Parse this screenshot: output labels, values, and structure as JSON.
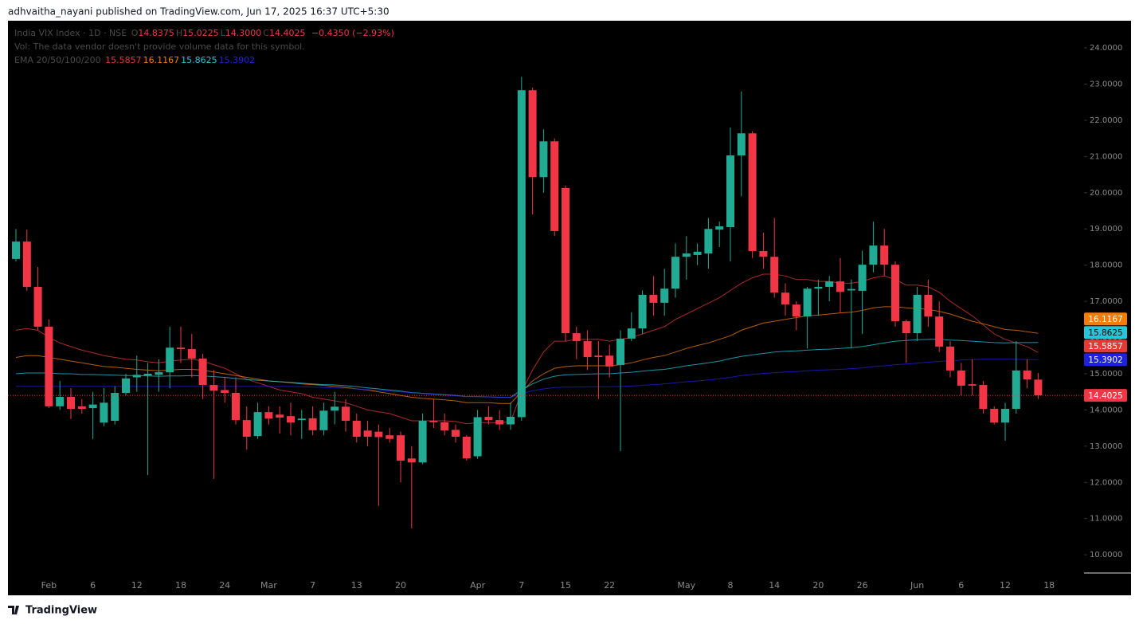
{
  "published": "adhvaitha_nayani published on TradingView.com, Jun 17, 2025 16:37 UTC+5:30",
  "brand": "TradingView",
  "chart_data": {
    "type": "candlestick",
    "title": "India VIX Index · 1D · NSE",
    "header_ohlc": [
      {
        "key": "O",
        "text": "14.8375"
      },
      {
        "key": "H",
        "text": "15.0225"
      },
      {
        "key": "L",
        "text": "14.3000"
      },
      {
        "key": "C",
        "text": "14.4025"
      }
    ],
    "change": "−0.4350 (−2.93%)",
    "volume_note": "Vol: The data vendor doesn't provide volume data for this symbol.",
    "indicator": "EMA 20/50/100/200",
    "up_color": "#22ab94",
    "down_color": "#f23645",
    "categories": [
      null,
      null,
      null,
      "Feb",
      null,
      null,
      null,
      "6",
      null,
      null,
      null,
      "12",
      null,
      null,
      null,
      "18",
      null,
      null,
      null,
      "24",
      null,
      null,
      null,
      "Mar",
      null,
      null,
      null,
      "7",
      null,
      null,
      null,
      "13",
      null,
      null,
      null,
      "20",
      null,
      null,
      null,
      null,
      null,
      null,
      "Apr",
      null,
      null,
      null,
      "7",
      null,
      null,
      null,
      "15",
      null,
      null,
      null,
      "22",
      null,
      null,
      null,
      null,
      null,
      null,
      "May",
      null,
      null,
      null,
      "8",
      null,
      null,
      null,
      "14",
      null,
      null,
      null,
      "20",
      null,
      null,
      null,
      "26",
      null,
      null,
      null,
      null,
      "Jun",
      null,
      null,
      null,
      "6",
      null,
      null,
      null,
      "12",
      null,
      null,
      null,
      "18"
    ],
    "open": [
      18.17,
      18.65,
      17.4,
      16.3,
      14.1,
      14.36,
      14.1,
      14.05,
      13.65,
      13.7,
      14.47,
      14.9,
      14.95,
      14.97,
      15.04,
      15.72,
      15.68,
      15.42,
      14.69,
      14.55,
      14.47,
      13.72,
      13.28,
      13.94,
      13.87,
      13.83,
      13.72,
      13.77,
      13.44,
      13.98,
      14.09,
      13.7,
      13.43,
      13.4,
      13.3,
      13.3,
      12.66,
      12.55,
      13.7,
      13.66,
      13.45,
      13.26,
      12.72,
      13.81,
      13.72,
      13.6,
      13.8,
      22.83,
      20.43,
      21.42,
      20.13,
      16.12,
      15.9,
      15.5,
      15.5,
      15.24,
      15.97,
      16.25,
      17.18,
      16.96,
      17.35,
      18.23,
      18.28,
      18.32,
      18.98,
      19.05,
      21.03,
      21.64,
      18.39,
      18.23,
      17.24,
      16.91,
      16.58,
      17.35,
      17.4,
      17.55,
      17.3,
      17.29,
      18.01,
      18.54,
      18.01,
      16.45,
      16.12,
      17.18,
      16.58,
      15.75,
      15.09,
      14.71,
      14.69,
      14.03,
      13.65,
      14.03,
      15.09,
      14.8375,
      null
    ],
    "high": [
      19.0,
      18.98,
      17.95,
      16.5,
      14.8,
      14.6,
      14.3,
      14.5,
      14.6,
      14.65,
      15.0,
      15.5,
      15.3,
      15.4,
      16.3,
      16.3,
      16.1,
      15.55,
      15.1,
      14.9,
      14.9,
      14.1,
      14.2,
      14.1,
      14.1,
      14.2,
      14.0,
      14.1,
      14.2,
      14.5,
      14.3,
      13.9,
      13.7,
      13.6,
      13.5,
      13.4,
      13.0,
      13.9,
      14.3,
      13.9,
      13.6,
      13.3,
      14.0,
      14.1,
      14.0,
      14.2,
      23.2,
      22.9,
      21.75,
      21.5,
      20.2,
      16.3,
      16.2,
      15.9,
      15.8,
      16.2,
      16.7,
      17.3,
      17.7,
      17.9,
      18.6,
      18.8,
      18.6,
      19.3,
      19.2,
      21.8,
      22.8,
      21.7,
      18.9,
      19.3,
      17.5,
      17.0,
      17.4,
      17.6,
      17.7,
      18.2,
      17.6,
      18.4,
      19.2,
      19.0,
      18.1,
      16.5,
      17.4,
      17.6,
      17.0,
      15.9,
      15.3,
      15.4,
      14.8,
      14.1,
      14.2,
      15.9,
      15.4,
      15.0225,
      null
    ],
    "low": [
      18.1,
      17.29,
      16.2,
      14.05,
      14.0,
      13.75,
      13.9,
      13.2,
      13.55,
      13.6,
      14.4,
      14.5,
      12.2,
      14.5,
      14.6,
      15.3,
      14.9,
      14.3,
      12.1,
      14.2,
      13.6,
      12.9,
      13.2,
      13.6,
      13.35,
      13.3,
      13.2,
      13.3,
      13.3,
      13.6,
      13.4,
      13.1,
      13.0,
      11.35,
      13.1,
      12.0,
      10.73,
      12.5,
      13.5,
      13.3,
      13.1,
      12.6,
      12.65,
      13.6,
      13.45,
      13.45,
      13.7,
      19.4,
      20.0,
      18.8,
      15.9,
      15.4,
      15.1,
      14.3,
      14.9,
      12.86,
      15.9,
      16.1,
      16.6,
      16.6,
      17.1,
      17.6,
      18.0,
      17.9,
      18.5,
      18.1,
      19.9,
      18.2,
      17.9,
      17.1,
      16.6,
      16.2,
      15.7,
      16.6,
      17.0,
      16.7,
      15.7,
      16.1,
      17.8,
      17.7,
      16.3,
      15.3,
      15.9,
      16.3,
      15.6,
      14.9,
      14.4,
      14.4,
      13.9,
      13.6,
      13.15,
      13.9,
      14.6,
      14.3,
      null
    ],
    "close": [
      18.65,
      17.4,
      16.3,
      14.1,
      14.36,
      14.03,
      14.03,
      14.15,
      14.2,
      14.47,
      14.87,
      14.97,
      15.0,
      15.04,
      15.72,
      15.68,
      15.42,
      14.69,
      14.53,
      14.47,
      13.72,
      13.26,
      13.94,
      13.76,
      13.79,
      13.65,
      13.76,
      13.44,
      13.98,
      14.09,
      13.7,
      13.26,
      13.26,
      13.25,
      13.2,
      12.6,
      12.55,
      13.7,
      13.66,
      13.43,
      13.26,
      12.66,
      13.8,
      13.72,
      13.6,
      13.81,
      22.83,
      20.43,
      21.42,
      18.94,
      16.12,
      15.9,
      15.46,
      15.46,
      15.2,
      15.97,
      16.25,
      17.18,
      16.96,
      17.35,
      18.23,
      18.32,
      18.37,
      19.0,
      19.07,
      21.03,
      21.64,
      18.39,
      18.23,
      17.24,
      16.91,
      16.58,
      17.35,
      17.4,
      17.55,
      17.26,
      17.34,
      18.01,
      18.54,
      18.01,
      16.45,
      16.12,
      17.18,
      16.58,
      15.75,
      15.09,
      14.67,
      14.67,
      14.03,
      13.65,
      14.03,
      15.09,
      14.84,
      14.4025,
      null
    ],
    "ema": [
      {
        "name": "EMA 20",
        "color": "#e53935",
        "values": [
          16.2,
          16.25,
          16.2,
          16.0,
          15.85,
          15.75,
          15.65,
          15.58,
          15.5,
          15.45,
          15.4,
          15.38,
          15.33,
          15.3,
          15.35,
          15.38,
          15.4,
          15.35,
          15.25,
          15.15,
          15.0,
          14.85,
          14.75,
          14.65,
          14.55,
          14.5,
          14.45,
          14.35,
          14.3,
          14.25,
          14.2,
          14.1,
          14.0,
          13.95,
          13.9,
          13.8,
          13.7,
          13.7,
          13.7,
          13.7,
          13.68,
          13.62,
          13.65,
          13.65,
          13.65,
          13.67,
          14.5,
          15.1,
          15.6,
          15.9,
          15.9,
          15.95,
          15.95,
          15.95,
          15.9,
          15.95,
          16.0,
          16.1,
          16.2,
          16.3,
          16.5,
          16.65,
          16.8,
          16.95,
          17.1,
          17.3,
          17.5,
          17.65,
          17.75,
          17.75,
          17.7,
          17.6,
          17.6,
          17.55,
          17.55,
          17.5,
          17.5,
          17.55,
          17.65,
          17.7,
          17.6,
          17.45,
          17.45,
          17.4,
          17.25,
          17.0,
          16.8,
          16.6,
          16.35,
          16.1,
          15.95,
          15.85,
          15.75,
          15.5857,
          null
        ]
      },
      {
        "name": "EMA 50",
        "color": "#f57c00",
        "values": [
          15.45,
          15.5,
          15.5,
          15.45,
          15.4,
          15.35,
          15.3,
          15.25,
          15.2,
          15.18,
          15.15,
          15.12,
          15.1,
          15.08,
          15.1,
          15.12,
          15.12,
          15.1,
          15.05,
          15.0,
          14.95,
          14.9,
          14.85,
          14.8,
          14.78,
          14.75,
          14.72,
          14.7,
          14.68,
          14.65,
          14.62,
          14.58,
          14.55,
          14.5,
          14.45,
          14.4,
          14.35,
          14.32,
          14.3,
          14.28,
          14.25,
          14.2,
          14.2,
          14.2,
          14.18,
          14.18,
          14.5,
          14.8,
          15.0,
          15.15,
          15.2,
          15.22,
          15.22,
          15.22,
          15.22,
          15.25,
          15.3,
          15.38,
          15.45,
          15.5,
          15.6,
          15.7,
          15.78,
          15.85,
          15.95,
          16.05,
          16.2,
          16.3,
          16.4,
          16.45,
          16.5,
          16.55,
          16.6,
          16.62,
          16.65,
          16.68,
          16.7,
          16.75,
          16.82,
          16.85,
          16.85,
          16.82,
          16.8,
          16.78,
          16.72,
          16.65,
          16.55,
          16.45,
          16.38,
          16.3,
          16.22,
          16.2,
          16.16,
          16.1167,
          null
        ]
      },
      {
        "name": "EMA 100",
        "color": "#26c6da",
        "values": [
          15.0,
          15.02,
          15.02,
          15.02,
          15.0,
          15.0,
          14.98,
          14.98,
          14.97,
          14.96,
          14.95,
          14.95,
          14.94,
          14.93,
          14.94,
          14.94,
          14.95,
          14.94,
          14.92,
          14.9,
          14.87,
          14.84,
          14.82,
          14.8,
          14.78,
          14.76,
          14.74,
          14.72,
          14.7,
          14.69,
          14.67,
          14.64,
          14.61,
          14.58,
          14.55,
          14.52,
          14.48,
          14.46,
          14.44,
          14.42,
          14.4,
          14.37,
          14.37,
          14.36,
          14.35,
          14.35,
          14.55,
          14.72,
          14.85,
          14.93,
          14.97,
          14.98,
          14.99,
          15.0,
          15.0,
          15.02,
          15.04,
          15.07,
          15.1,
          15.12,
          15.17,
          15.22,
          15.26,
          15.3,
          15.35,
          15.42,
          15.48,
          15.52,
          15.56,
          15.6,
          15.62,
          15.63,
          15.65,
          15.67,
          15.68,
          15.7,
          15.72,
          15.75,
          15.8,
          15.85,
          15.9,
          15.92,
          15.94,
          15.95,
          15.95,
          15.93,
          15.92,
          15.9,
          15.88,
          15.86,
          15.85,
          15.86,
          15.86,
          15.8625,
          null
        ]
      },
      {
        "name": "EMA 200",
        "color": "#1e22e0",
        "values": [
          14.65,
          14.65,
          14.65,
          14.65,
          14.65,
          14.65,
          14.65,
          14.65,
          14.65,
          14.65,
          14.65,
          14.65,
          14.65,
          14.65,
          14.65,
          14.65,
          14.65,
          14.65,
          14.65,
          14.65,
          14.65,
          14.65,
          14.65,
          14.65,
          14.65,
          14.65,
          14.64,
          14.63,
          14.62,
          14.61,
          14.6,
          14.58,
          14.56,
          14.54,
          14.52,
          14.5,
          14.47,
          14.45,
          14.43,
          14.41,
          14.39,
          14.37,
          14.37,
          14.36,
          14.35,
          14.35,
          14.45,
          14.53,
          14.58,
          14.62,
          14.63,
          14.63,
          14.64,
          14.64,
          14.64,
          14.65,
          14.66,
          14.68,
          14.7,
          14.72,
          14.75,
          14.78,
          14.8,
          14.83,
          14.86,
          14.9,
          14.95,
          14.98,
          15.01,
          15.03,
          15.05,
          15.06,
          15.08,
          15.1,
          15.11,
          15.12,
          15.14,
          15.16,
          15.2,
          15.22,
          15.25,
          15.27,
          15.29,
          15.32,
          15.34,
          15.36,
          15.38,
          15.39,
          15.4,
          15.4,
          15.4,
          15.4,
          15.39,
          15.3902,
          null
        ]
      }
    ],
    "ylim": [
      8.88,
      24.75
    ],
    "yticks": [
      {
        "value": 10,
        "label": "10.0000"
      },
      {
        "value": 11,
        "label": "11.0000"
      },
      {
        "value": 12,
        "label": "12.0000"
      },
      {
        "value": 13,
        "label": "13.0000"
      },
      {
        "value": 14,
        "label": "14.0000"
      },
      {
        "value": 15,
        "label": "15.0000"
      },
      {
        "value": 16,
        "label": "16.0000"
      },
      {
        "value": 17,
        "label": "17.0000"
      },
      {
        "value": 18,
        "label": "18.0000"
      },
      {
        "value": 19,
        "label": "19.0000"
      },
      {
        "value": 20,
        "label": "20.0000"
      },
      {
        "value": 21,
        "label": "21.0000"
      },
      {
        "value": 22,
        "label": "22.0000"
      },
      {
        "value": 23,
        "label": "23.0000"
      },
      {
        "value": 24,
        "label": "24.0000"
      }
    ],
    "grid": false
  }
}
